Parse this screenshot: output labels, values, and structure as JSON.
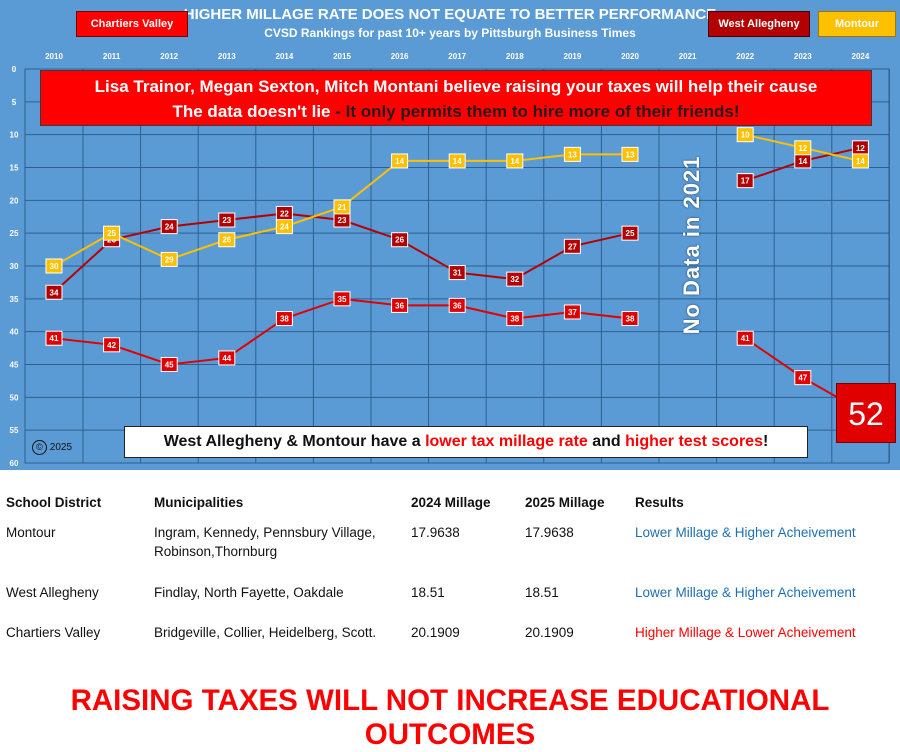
{
  "header": {
    "title": "HIGHER MILLAGE RATE DOES NOT EQUATE TO BETTER PERFORMANCE",
    "subtitle": "CVSD Rankings for past 10+ years by Pittsburgh Business Times"
  },
  "legend": {
    "chartiers": "Chartiers Valley",
    "west_allegheny": "West Allegheny",
    "montour": "Montour"
  },
  "banner": {
    "line1": "Lisa Trainor, Megan Sexton, Mitch Montani believe raising your taxes will help their cause",
    "line2_a": "The data doesn't lie",
    "line2_b": " - It only permits them to hire more of their friends!"
  },
  "no_data": "No Data in 2021",
  "big_value": "52",
  "copyright": "2025",
  "note": {
    "part1": "West Allegheny & Montour have a ",
    "part2": "lower tax millage rate",
    "part3": " and ",
    "part4": "higher test scores",
    "part5": "!"
  },
  "colors": {
    "chartiers": "#e00000",
    "west_allegheny": "#b30000",
    "montour": "#ffc000",
    "background": "#5b9bd5"
  },
  "chart_data": {
    "type": "line",
    "title": "HIGHER MILLAGE RATE DOES NOT EQUATE TO BETTER PERFORMANCE",
    "subtitle": "CVSD Rankings for past 10+ years by Pittsburgh Business Times",
    "categories": [
      "2010",
      "2011",
      "2012",
      "2013",
      "2014",
      "2015",
      "2016",
      "2017",
      "2018",
      "2019",
      "2020",
      "2021",
      "2022",
      "2023",
      "2024"
    ],
    "y_ticks": [
      0,
      5,
      10,
      15,
      20,
      25,
      30,
      35,
      40,
      45,
      50,
      55,
      60
    ],
    "ylim": [
      0,
      60
    ],
    "y_inverted": true,
    "grid": true,
    "series": [
      {
        "name": "Chartiers Valley",
        "color": "#e00000",
        "values": [
          41,
          42,
          45,
          44,
          38,
          35,
          36,
          36,
          38,
          37,
          38,
          null,
          41,
          47,
          52
        ]
      },
      {
        "name": "West Allegheny",
        "color": "#b30000",
        "values": [
          34,
          26,
          24,
          23,
          22,
          23,
          26,
          31,
          32,
          27,
          25,
          null,
          17,
          14,
          12
        ]
      },
      {
        "name": "Montour",
        "color": "#ffc000",
        "values": [
          30,
          25,
          29,
          26,
          24,
          21,
          14,
          14,
          14,
          13,
          13,
          null,
          10,
          12,
          14
        ]
      }
    ]
  },
  "table": {
    "headers": [
      "School District",
      "Municipalities",
      "2024 Millage",
      "2025 Millage",
      "Results"
    ],
    "rows": [
      {
        "district": "Montour",
        "municipalities": "Ingram, Kennedy, Pennsbury Village, Robinson,Thornburg",
        "m2024": "17.9638",
        "m2025": "17.9638",
        "result": "Lower Millage & Higher Acheivement",
        "result_color": "blue"
      },
      {
        "district": "West Allegheny",
        "municipalities": "Findlay, North Fayette, Oakdale",
        "m2024": "18.51",
        "m2025": "18.51",
        "result": "Lower Millage & Higher Acheivement",
        "result_color": "blue"
      },
      {
        "district": "Chartiers Valley",
        "municipalities": "Bridgeville, Collier, Heidelberg, Scott.",
        "m2024": "20.1909",
        "m2025": "20.1909",
        "result": "Higher Millage & Lower Acheivement",
        "result_color": "red"
      }
    ]
  },
  "footer_headline": "RAISING TAXES WILL NOT INCREASE EDUCATIONAL OUTCOMES"
}
